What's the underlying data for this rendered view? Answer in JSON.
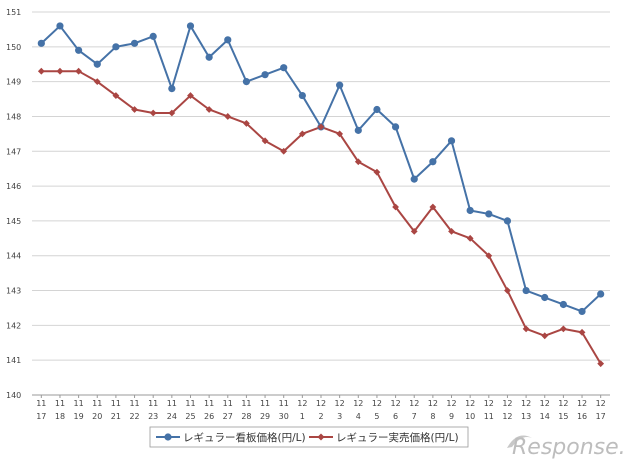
{
  "chart_data": {
    "type": "line",
    "categories": [
      [
        "11",
        "17"
      ],
      [
        "11",
        "18"
      ],
      [
        "11",
        "19"
      ],
      [
        "11",
        "20"
      ],
      [
        "11",
        "21"
      ],
      [
        "11",
        "22"
      ],
      [
        "11",
        "23"
      ],
      [
        "11",
        "24"
      ],
      [
        "11",
        "25"
      ],
      [
        "11",
        "26"
      ],
      [
        "11",
        "27"
      ],
      [
        "11",
        "28"
      ],
      [
        "11",
        "29"
      ],
      [
        "11",
        "30"
      ],
      [
        "12",
        "1"
      ],
      [
        "12",
        "2"
      ],
      [
        "12",
        "3"
      ],
      [
        "12",
        "4"
      ],
      [
        "12",
        "5"
      ],
      [
        "12",
        "6"
      ],
      [
        "12",
        "7"
      ],
      [
        "12",
        "8"
      ],
      [
        "12",
        "9"
      ],
      [
        "12",
        "10"
      ],
      [
        "12",
        "11"
      ],
      [
        "12",
        "12"
      ],
      [
        "12",
        "13"
      ],
      [
        "12",
        "14"
      ],
      [
        "12",
        "15"
      ],
      [
        "12",
        "16"
      ],
      [
        "12",
        "17"
      ]
    ],
    "series": [
      {
        "name": "レギュラー看板価格(円/L)",
        "color": "#4572a7",
        "marker": "circle",
        "values": [
          150.1,
          150.6,
          149.9,
          149.5,
          150.0,
          150.1,
          150.3,
          148.8,
          150.6,
          149.7,
          150.2,
          149.0,
          149.2,
          149.4,
          148.6,
          147.7,
          148.9,
          147.6,
          148.2,
          147.7,
          146.2,
          146.7,
          147.3,
          145.3,
          145.2,
          145.0,
          143.0,
          142.8,
          142.6,
          142.4,
          142.9
        ]
      },
      {
        "name": "レギュラー実売価格(円/L)",
        "color": "#aa4643",
        "marker": "diamond",
        "values": [
          149.3,
          149.3,
          149.3,
          149.0,
          148.6,
          148.2,
          148.1,
          148.1,
          148.6,
          148.2,
          148.0,
          147.8,
          147.3,
          147.0,
          147.5,
          147.7,
          147.5,
          146.7,
          146.4,
          145.4,
          144.7,
          145.4,
          144.7,
          144.5,
          144.0,
          143.0,
          141.9,
          141.7,
          141.9,
          141.8,
          140.9
        ]
      }
    ],
    "ylim": [
      140,
      151
    ],
    "yticks": [
      140,
      141,
      142,
      143,
      144,
      145,
      146,
      147,
      148,
      149,
      150,
      151
    ],
    "grid": true,
    "legend_position": "bottom",
    "watermark": "Response."
  }
}
